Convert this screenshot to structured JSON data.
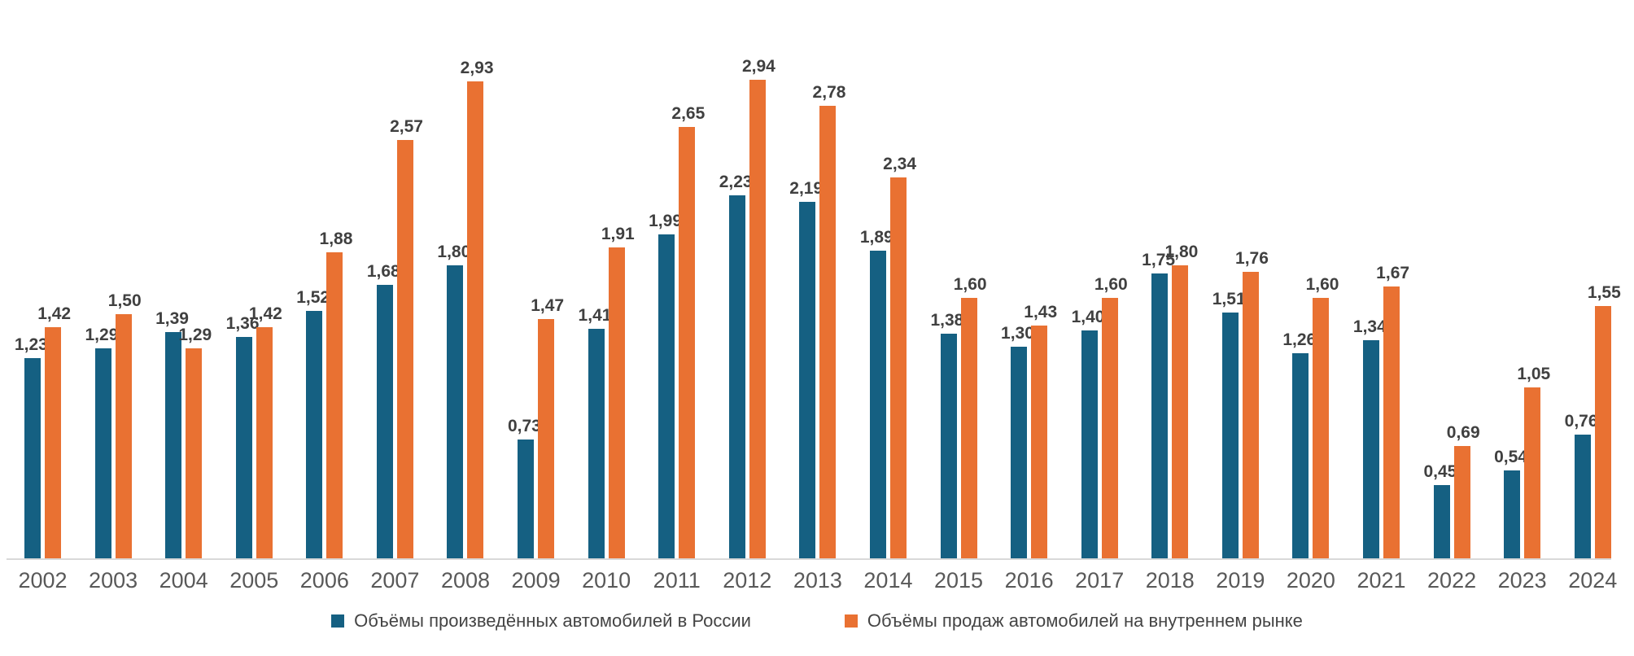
{
  "chart_data": {
    "type": "bar",
    "categories": [
      "2002",
      "2003",
      "2004",
      "2005",
      "2006",
      "2007",
      "2008",
      "2009",
      "2010",
      "2011",
      "2012",
      "2013",
      "2014",
      "2015",
      "2016",
      "2017",
      "2018",
      "2019",
      "2020",
      "2021",
      "2022",
      "2023",
      "2024"
    ],
    "series": [
      {
        "name": "Объёмы произведённых автомобилей в России",
        "color": "#156082",
        "values": [
          1.23,
          1.29,
          1.39,
          1.36,
          1.52,
          1.68,
          1.8,
          0.73,
          1.41,
          1.99,
          2.23,
          2.19,
          1.89,
          1.38,
          1.3,
          1.4,
          1.75,
          1.51,
          1.26,
          1.34,
          0.45,
          0.54,
          0.76
        ]
      },
      {
        "name": "Объёмы продаж автомобилей на внутреннем рынке",
        "color": "#E97132",
        "values": [
          1.42,
          1.5,
          1.29,
          1.42,
          1.88,
          2.57,
          2.93,
          1.47,
          1.91,
          2.65,
          2.94,
          2.78,
          2.34,
          1.6,
          1.43,
          1.6,
          1.8,
          1.76,
          1.6,
          1.67,
          0.69,
          1.05,
          1.55
        ]
      }
    ],
    "title": "",
    "xlabel": "",
    "ylabel": "",
    "ylim": [
      0,
      3.2
    ],
    "grid": false,
    "y_axis_visible": false,
    "legend_position": "bottom",
    "value_labels_shown": true,
    "value_label_decimals": 2,
    "value_label_decimal_separator": ","
  },
  "colors": {
    "value_label": "#404040",
    "year_label": "#595959",
    "axis_line": "#D9D9D9",
    "background": "#FFFFFF"
  }
}
